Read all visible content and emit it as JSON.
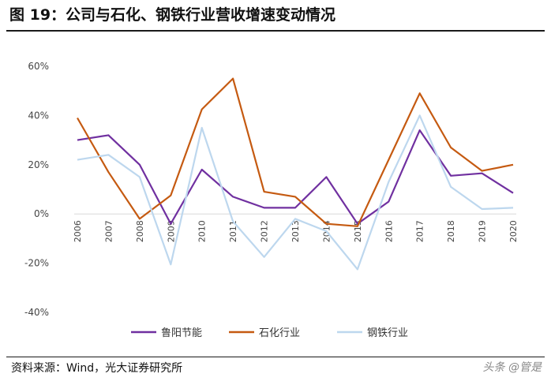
{
  "figure": {
    "title": "图 19：公司与石化、钢铁行业营收增速变动情况",
    "source": "资料来源：Wind，光大证券研究所",
    "watermark": "头条 @管是"
  },
  "colors": {
    "鲁阳节能": "#7030A0",
    "石化行业": "#C55A11",
    "钢铁行业": "#BDD7EE",
    "axis_text": "#444444",
    "axis_line": "#D9D9D9"
  },
  "chart_data": {
    "type": "line",
    "title": "",
    "xlabel": "",
    "ylabel": "",
    "x": [
      "2006",
      "2007",
      "2008",
      "2009",
      "2010",
      "2011",
      "2012",
      "2013",
      "2014",
      "2015",
      "2016",
      "2017",
      "2018",
      "2019",
      "2020"
    ],
    "ylim": [
      -40,
      60
    ],
    "yticks": [
      60,
      40,
      20,
      0,
      -20,
      -40
    ],
    "ytick_labels": [
      "60%",
      "40%",
      "20%",
      "0%",
      "-20%",
      "-40%"
    ],
    "grid": false,
    "legend_position": "bottom",
    "series": [
      {
        "name": "鲁阳节能",
        "values": [
          30,
          32,
          20,
          -4,
          18,
          7,
          2.5,
          2.5,
          15,
          -4,
          5,
          34,
          15.5,
          16.5,
          8.5
        ]
      },
      {
        "name": "石化行业",
        "values": [
          39,
          17,
          -2,
          7.5,
          42.5,
          55,
          9,
          7,
          -4,
          -5,
          22,
          49,
          27,
          17.5,
          20
        ]
      },
      {
        "name": "钢铁行业",
        "values": [
          22,
          24,
          15,
          -20.5,
          35,
          -3,
          -17.5,
          -2,
          -7,
          -22.5,
          13,
          40,
          11,
          2,
          2.5
        ]
      }
    ]
  }
}
